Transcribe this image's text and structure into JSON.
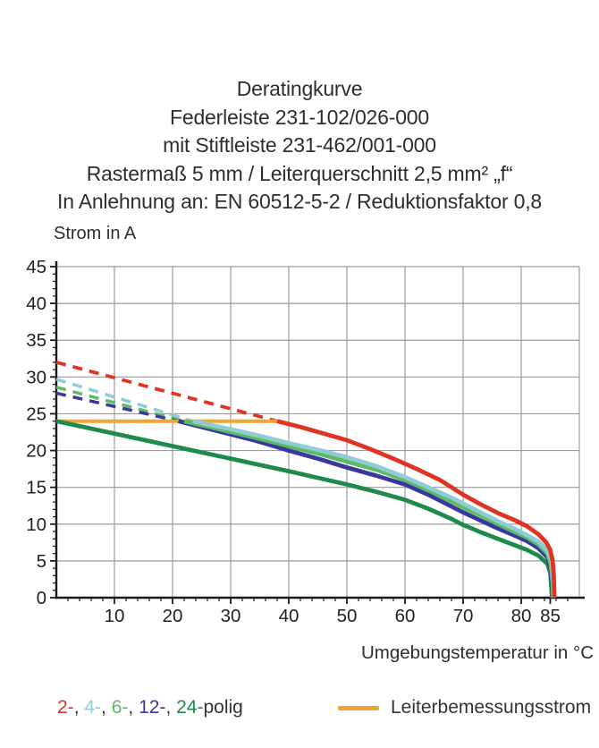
{
  "title": {
    "lines": [
      "Deratingkurve",
      "Federleiste 231-102/026-000",
      "mit Stiftleiste 231-462/001-000",
      "Rastermaß 5 mm / Leiterquerschnitt 2,5 mm² „f“",
      "In Anlehnung an: EN 60512-5-2 / Reduktionsfaktor 0,8"
    ]
  },
  "chart_data": {
    "type": "line",
    "title": "Deratingkurve",
    "ylabel": "Strom in A",
    "xlabel": "Umgebungstemperatur in °C",
    "xlim": [
      0,
      90
    ],
    "ylim": [
      0,
      45
    ],
    "xticks": [
      10,
      20,
      30,
      40,
      50,
      60,
      70,
      80,
      85
    ],
    "yticks": [
      0,
      5,
      10,
      15,
      20,
      25,
      30,
      35,
      40,
      45
    ],
    "x_minor_step": 2,
    "y_minor_step": 1,
    "grid": true,
    "grid_color": "#9c9c9c",
    "axis_color": "#1a1a1a",
    "legend_position": "bottom",
    "series": [
      {
        "name": "2-polig-theoretisch",
        "color": "#e03423",
        "style": "dashed",
        "width": 3.8,
        "points": [
          [
            0,
            32
          ],
          [
            38,
            24
          ]
        ]
      },
      {
        "name": "4-polig-theoretisch",
        "color": "#8fcdd6",
        "style": "dashed",
        "width": 3.5,
        "points": [
          [
            0,
            29.7
          ],
          [
            23.5,
            24
          ]
        ]
      },
      {
        "name": "6-polig-theoretisch",
        "color": "#5fbb61",
        "style": "dashed",
        "width": 3.5,
        "points": [
          [
            0,
            28.6
          ],
          [
            22,
            24
          ]
        ]
      },
      {
        "name": "12-polig-theoretisch",
        "color": "#39389f",
        "style": "dashed",
        "width": 3.5,
        "points": [
          [
            0,
            27.8
          ],
          [
            21,
            24
          ]
        ]
      },
      {
        "name": "Leiterbemessungsstrom",
        "color": "#f0a432",
        "style": "solid",
        "width": 4,
        "points": [
          [
            0,
            24
          ],
          [
            38.5,
            24
          ]
        ]
      },
      {
        "name": "24-polig",
        "color": "#1e8a4c",
        "style": "solid",
        "width": 4.8,
        "points": [
          [
            0,
            24
          ],
          [
            10,
            22.3
          ],
          [
            20,
            20.6
          ],
          [
            30,
            18.9
          ],
          [
            40,
            17.2
          ],
          [
            50,
            15.4
          ],
          [
            55,
            14.4
          ],
          [
            60,
            13.3
          ],
          [
            64,
            12.1
          ],
          [
            68,
            10.7
          ],
          [
            70,
            9.9
          ],
          [
            73,
            8.9
          ],
          [
            76,
            8.0
          ],
          [
            79,
            7.1
          ],
          [
            81,
            6.5
          ],
          [
            83,
            5.7
          ],
          [
            84.5,
            4.6
          ],
          [
            85,
            3.4
          ],
          [
            85.2,
            1.2
          ],
          [
            85.3,
            0
          ]
        ]
      },
      {
        "name": "12-polig",
        "color": "#39389f",
        "style": "solid",
        "width": 4.8,
        "points": [
          [
            21,
            24
          ],
          [
            28,
            22.6
          ],
          [
            34,
            21.4
          ],
          [
            40,
            20.0
          ],
          [
            45,
            18.9
          ],
          [
            50,
            17.7
          ],
          [
            55,
            16.6
          ],
          [
            60,
            15.4
          ],
          [
            64,
            14.0
          ],
          [
            68,
            12.4
          ],
          [
            70,
            11.6
          ],
          [
            73,
            10.5
          ],
          [
            76,
            9.4
          ],
          [
            79,
            8.4
          ],
          [
            81,
            7.7
          ],
          [
            83,
            6.7
          ],
          [
            84.5,
            5.5
          ],
          [
            85,
            4.2
          ],
          [
            85.3,
            1.8
          ],
          [
            85.45,
            0
          ]
        ]
      },
      {
        "name": "6-polig",
        "color": "#5fbb61",
        "style": "solid",
        "width": 4.8,
        "points": [
          [
            22,
            24
          ],
          [
            28,
            22.9
          ],
          [
            34,
            21.8
          ],
          [
            40,
            20.6
          ],
          [
            45,
            19.6
          ],
          [
            50,
            18.5
          ],
          [
            55,
            17.4
          ],
          [
            60,
            16.0
          ],
          [
            64,
            14.6
          ],
          [
            68,
            13.1
          ],
          [
            70,
            12.3
          ],
          [
            73,
            11.2
          ],
          [
            76,
            10.0
          ],
          [
            79,
            8.9
          ],
          [
            81,
            8.2
          ],
          [
            83,
            7.2
          ],
          [
            84.5,
            6.0
          ],
          [
            85.1,
            4.6
          ],
          [
            85.4,
            2.0
          ],
          [
            85.5,
            0
          ]
        ]
      },
      {
        "name": "4-polig",
        "color": "#8fcdd6",
        "style": "solid",
        "width": 4.8,
        "points": [
          [
            23.5,
            24
          ],
          [
            30,
            22.9
          ],
          [
            35,
            22.0
          ],
          [
            40,
            21.0
          ],
          [
            45,
            20.1
          ],
          [
            50,
            19.1
          ],
          [
            55,
            17.9
          ],
          [
            60,
            16.4
          ],
          [
            64,
            15.0
          ],
          [
            68,
            13.6
          ],
          [
            70,
            12.8
          ],
          [
            73,
            11.6
          ],
          [
            76,
            10.4
          ],
          [
            79,
            9.3
          ],
          [
            81,
            8.5
          ],
          [
            83,
            7.6
          ],
          [
            84.5,
            6.4
          ],
          [
            85.2,
            5.0
          ],
          [
            85.5,
            2.5
          ],
          [
            85.6,
            0
          ]
        ]
      },
      {
        "name": "2-polig",
        "color": "#e03423",
        "style": "solid",
        "width": 4.8,
        "points": [
          [
            38,
            24
          ],
          [
            42,
            23.2
          ],
          [
            46,
            22.3
          ],
          [
            50,
            21.4
          ],
          [
            54,
            20.2
          ],
          [
            58,
            18.9
          ],
          [
            62,
            17.5
          ],
          [
            66,
            16.0
          ],
          [
            70,
            14.0
          ],
          [
            73,
            12.7
          ],
          [
            76,
            11.5
          ],
          [
            79,
            10.5
          ],
          [
            81,
            9.7
          ],
          [
            83,
            8.6
          ],
          [
            84.3,
            7.5
          ],
          [
            85,
            6.5
          ],
          [
            85.4,
            5.0
          ],
          [
            85.6,
            3.0
          ],
          [
            85.7,
            0
          ]
        ]
      }
    ]
  },
  "legend": {
    "pole_items": [
      {
        "text": "2-",
        "color": "#e03423"
      },
      {
        "text": "4-",
        "color": "#8fcdd6"
      },
      {
        "text": "6-",
        "color": "#5fbb61"
      },
      {
        "text": "12-",
        "color": "#39389f"
      },
      {
        "text": "24-",
        "color": "#1e8a4c"
      }
    ],
    "separator": ", ",
    "suffix": "polig",
    "line_label": "Leiterbemessungsstrom",
    "line_color": "#f0a432"
  }
}
